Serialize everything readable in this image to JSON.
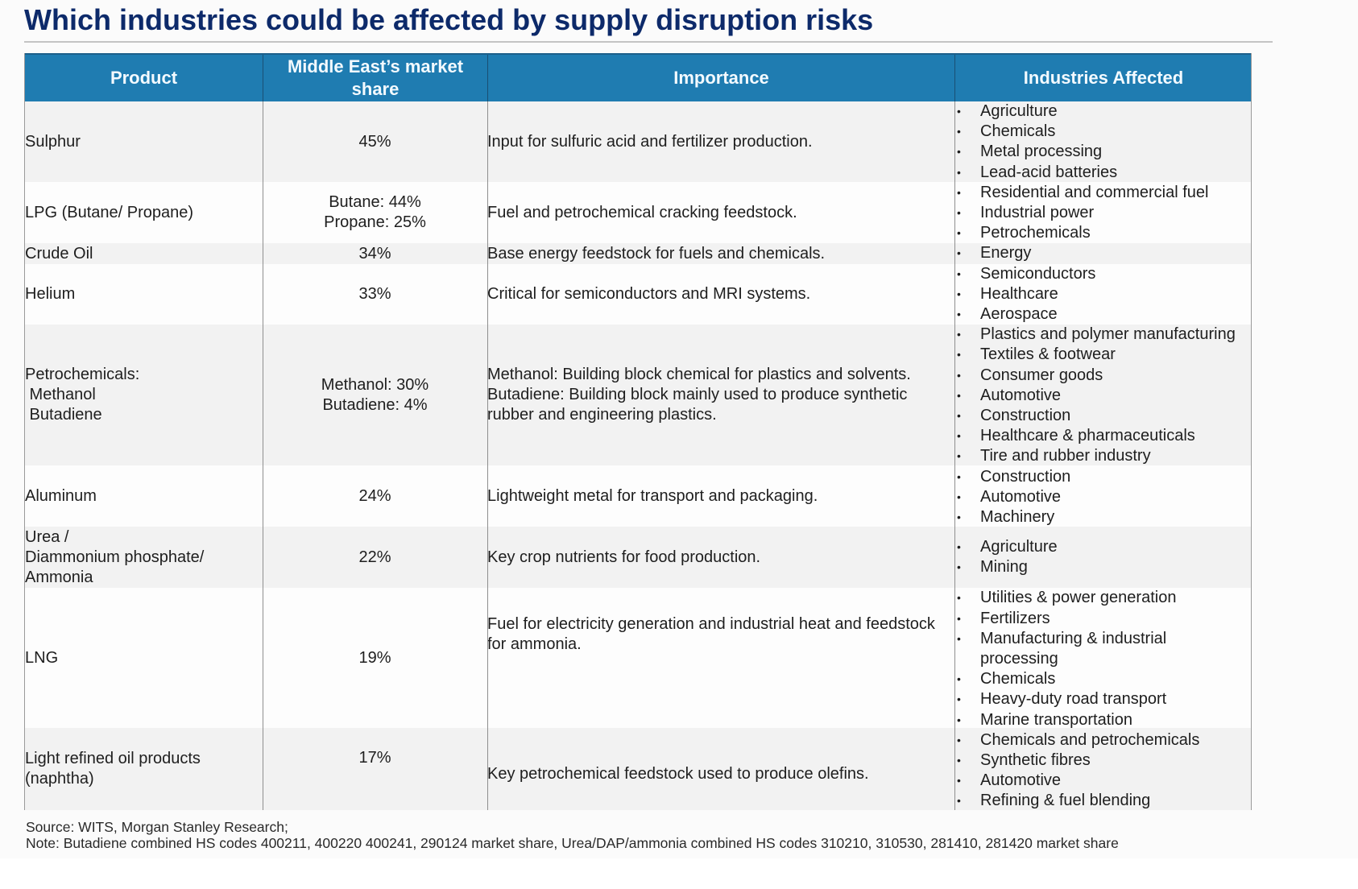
{
  "title": "Which industries could be affected by supply disruption risks",
  "header": {
    "product": "Product",
    "market_share": "Middle East’s market share",
    "importance": "Importance",
    "industries": "Industries Affected"
  },
  "rows": [
    {
      "product": "Sulphur",
      "share": "45%",
      "importance": "Input for sulfuric acid and fertilizer production.",
      "industries": [
        "Agriculture",
        "Chemicals",
        "Metal processing",
        "Lead-acid batteries"
      ]
    },
    {
      "product": "LPG (Butane/ Propane)",
      "share": "Butane: 44%\nPropane: 25%",
      "importance": "Fuel and petrochemical cracking feedstock.",
      "industries": [
        "Residential and commercial fuel",
        "Industrial power",
        "Petrochemicals"
      ]
    },
    {
      "product": "Crude Oil",
      "share": "34%",
      "importance": "Base energy feedstock for fuels and chemicals.",
      "industries": [
        "Energy"
      ]
    },
    {
      "product": "Helium",
      "share": "33%",
      "importance": "Critical for semiconductors and MRI systems.",
      "industries": [
        "Semiconductors",
        "Healthcare",
        "Aerospace"
      ]
    },
    {
      "product": "Petrochemicals:\n Methanol\n Butadiene",
      "share": "Methanol: 30%\nButadiene: 4%",
      "importance": "Methanol: Building block chemical for plastics and solvents.\nButadiene: Building block mainly used to produce synthetic\nrubber and engineering plastics.",
      "industries": [
        "Plastics and polymer manufacturing",
        "Textiles & footwear",
        "Consumer goods",
        "Automotive",
        "Construction",
        "Healthcare & pharmaceuticals",
        "Tire and rubber industry"
      ]
    },
    {
      "product": "Aluminum",
      "share": "24%",
      "importance": "Lightweight metal for transport and packaging.",
      "industries": [
        "Construction",
        "Automotive",
        "Machinery"
      ]
    },
    {
      "product": "Urea /\nDiammonium phosphate/\nAmmonia",
      "share": "22%",
      "importance": "Key crop nutrients for food production.",
      "industries": [
        "Agriculture",
        "Mining"
      ]
    },
    {
      "product": "LNG",
      "share": "19%",
      "importance": "Fuel for electricity generation and industrial heat and feedstock\nfor ammonia.",
      "industries": [
        "Utilities & power generation",
        "Fertilizers",
        "Manufacturing & industrial",
        "processing",
        "Chemicals",
        "Heavy-duty road transport",
        "Marine transportation"
      ]
    },
    {
      "product": "Light refined oil products\n(naphtha)",
      "share": "17%",
      "importance": "Key petrochemical feedstock used to produce olefins.",
      "industries": [
        "Chemicals and petrochemicals",
        "Synthetic fibres",
        "Automotive",
        "Refining & fuel blending"
      ]
    }
  ],
  "bullet_glyph": "•",
  "footer": {
    "source": "Source: WITS, Morgan Stanley Research;",
    "note": "Note: Butadiene combined HS codes 400211, 400220 400241, 290124 market share, Urea/DAP/ammonia combined HS codes 310210, 310530, 281410, 281420 market share"
  }
}
